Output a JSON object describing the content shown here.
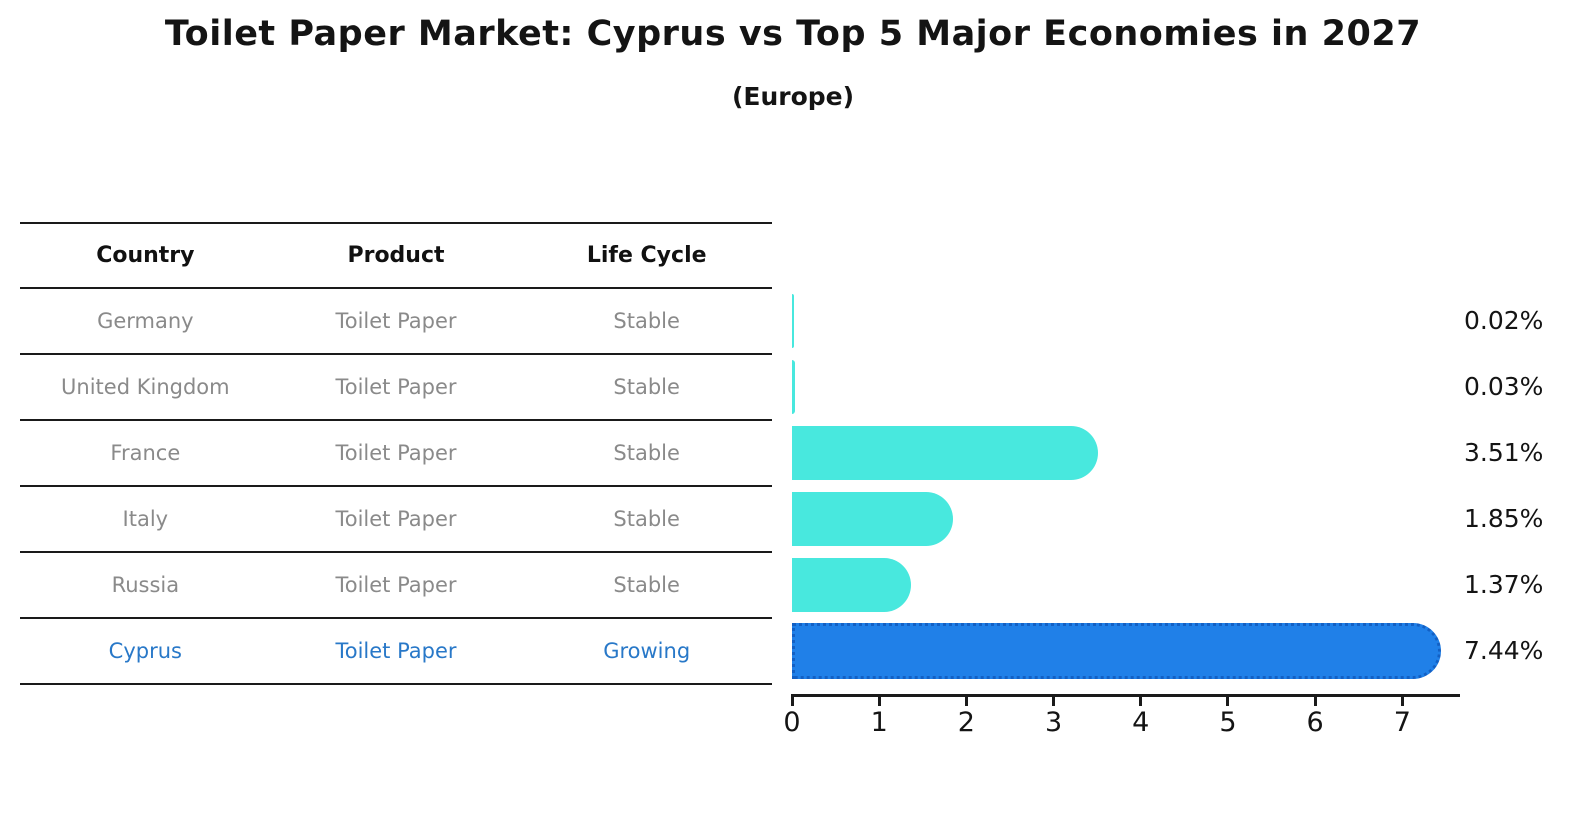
{
  "title": "Toilet Paper Market: Cyprus vs Top 5 Major Economies in 2027",
  "subtitle": "(Europe)",
  "colors": {
    "bar_default": "#48e8de",
    "bar_highlight": "#2080e8",
    "bar_highlight_border": "#1360c4",
    "table_text": "#8a8a8a",
    "highlight_text": "#2878c8",
    "header_text": "#111111",
    "axis_text": "#141414"
  },
  "table": {
    "columns": [
      "Country",
      "Product",
      "Life Cycle"
    ],
    "rows": [
      {
        "country": "Germany",
        "product": "Toilet Paper",
        "life_cycle": "Stable",
        "value": 0.02,
        "value_label": "0.02%",
        "highlight": false
      },
      {
        "country": "United Kingdom",
        "product": "Toilet Paper",
        "life_cycle": "Stable",
        "value": 0.03,
        "value_label": "0.03%",
        "highlight": false
      },
      {
        "country": "France",
        "product": "Toilet Paper",
        "life_cycle": "Stable",
        "value": 3.51,
        "value_label": "3.51%",
        "highlight": false
      },
      {
        "country": "Italy",
        "product": "Toilet Paper",
        "life_cycle": "Stable",
        "value": 1.85,
        "value_label": "1.85%",
        "highlight": false
      },
      {
        "country": "Russia",
        "product": "Toilet Paper",
        "life_cycle": "Stable",
        "value": 1.37,
        "value_label": "1.37%",
        "highlight": false
      },
      {
        "country": "Cyprus",
        "product": "Toilet Paper",
        "life_cycle": "Growing",
        "value": 7.44,
        "value_label": "7.44%",
        "highlight": true
      }
    ]
  },
  "chart_data": {
    "type": "bar",
    "orientation": "horizontal",
    "title": "Toilet Paper Market: Cyprus vs Top 5 Major Economies in 2027",
    "subtitle": "(Europe)",
    "categories": [
      "Germany",
      "United Kingdom",
      "France",
      "Italy",
      "Russia",
      "Cyprus"
    ],
    "values": [
      0.02,
      0.03,
      3.51,
      1.85,
      1.37,
      7.44
    ],
    "data_labels": [
      "0.02%",
      "0.03%",
      "3.51%",
      "1.85%",
      "1.37%",
      "7.44%"
    ],
    "highlight_category": "Cyprus",
    "xlabel": "",
    "ylabel": "",
    "xlim": [
      0,
      7.65
    ],
    "xticks": [
      0,
      1,
      2,
      3,
      4,
      5,
      6,
      7
    ],
    "grid": false,
    "legend": false
  }
}
